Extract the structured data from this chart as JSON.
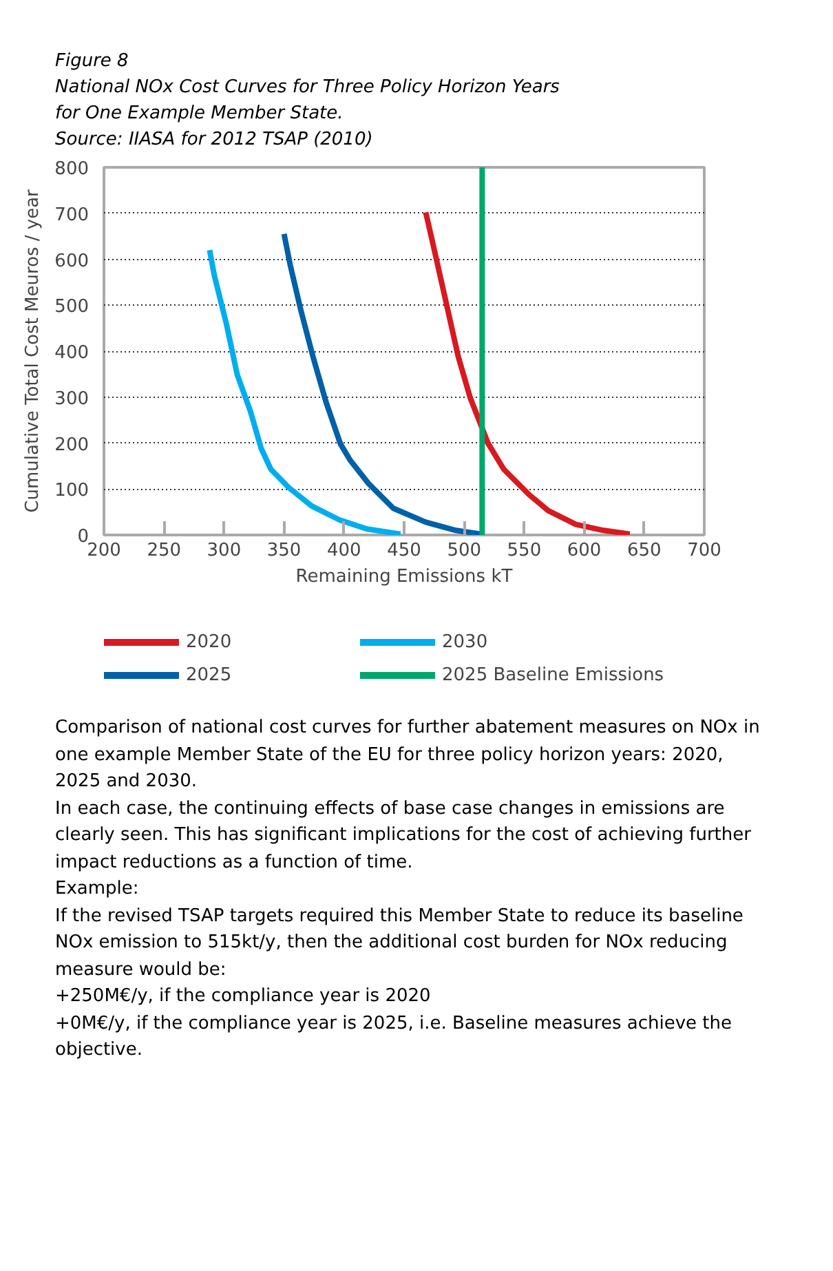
{
  "chart_data": {
    "type": "line",
    "title": "Figure 8",
    "subtitle": "National NOx Cost Curves for Three Policy Horizon Years\nfor One Example Member State.",
    "annotations": [
      "Source: IIASA for 2012 TSAP (2010)",
      "Comparison of national cost curves for further abatement measures on NOx in one example Member State of the EU for three policy horizon years: 2020, 2025 and 2030.",
      "In each case, the continuing effects of base case changes in emissions are clearly seen. This has significant implications for the cost of achieving further impact reductions as a function of time.",
      "Example:",
      "If the revised TSAP targets required this Member State to reduce its baseline NOx emission to 515kt/y, then the additional cost burden for NOx reducing measure would be:",
      "+250M€/y, if the compliance year is 2020",
      "+0M€/y, if the compliance year is 2025, i.e. Baseline measures achieve the objective."
    ],
    "xlabel": "Remaining Emissions kT",
    "ylabel": "Cumulative Total Cost Meuros / year",
    "xlim": [
      200,
      700
    ],
    "xticks": [
      200,
      250,
      300,
      350,
      400,
      450,
      500,
      550,
      600,
      650,
      700
    ],
    "ylim": [
      0,
      800
    ],
    "yticks": [
      0,
      100,
      200,
      300,
      400,
      500,
      600,
      700,
      800
    ],
    "grid": "y",
    "legend": "bottom",
    "line_style": "solid",
    "marker": "none",
    "series": [
      {
        "name": "2020",
        "color": "#d71920",
        "x": [
          468,
          473,
          483,
          495,
          505,
          514,
          520,
          533,
          554,
          570,
          593,
          616,
          638
        ],
        "values": [
          702,
          645,
          529,
          389,
          299,
          239,
          199,
          143,
          88,
          53,
          23,
          10,
          2
        ]
      },
      {
        "name": "2025",
        "color": "#0060a8",
        "x": [
          350,
          355,
          364,
          374,
          385,
          397,
          405,
          420,
          441,
          468,
          493,
          514
        ],
        "values": [
          655,
          589,
          489,
          389,
          289,
          198,
          163,
          113,
          58,
          28,
          10,
          2
        ]
      },
      {
        "name": "2030",
        "color": "#00aeef",
        "x": [
          288,
          292,
          302,
          311,
          322,
          331,
          339,
          354,
          373,
          396,
          419,
          447
        ],
        "values": [
          620,
          564,
          459,
          349,
          269,
          188,
          143,
          103,
          63,
          33,
          13,
          2
        ]
      }
    ],
    "ref_lines": [
      {
        "axis": "x",
        "value": 515,
        "label": "2025 Baseline Emissions",
        "color": "#00a66c",
        "line_style": "solid"
      }
    ]
  }
}
